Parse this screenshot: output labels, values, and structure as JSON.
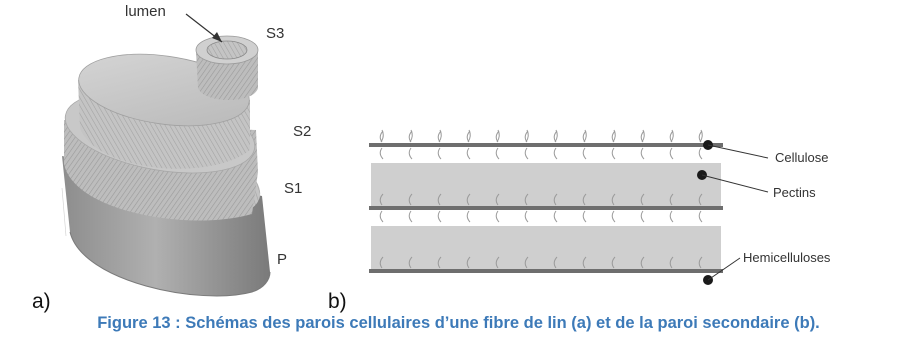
{
  "panel_a": {
    "letter": "a)",
    "labels": {
      "lumen": "lumen",
      "s3": "S3",
      "s2": "S2",
      "s1": "S1",
      "p": "P"
    }
  },
  "panel_b": {
    "letter": "b)",
    "labels": {
      "cellulose": "Cellulose",
      "pectins": "Pectins",
      "hemicelluloses": "Hemicelluloses"
    }
  },
  "caption": "Figure 13 : Schémas des parois cellulaires d’une fibre de lin (a) et de la paroi secondaire (b).",
  "colors": {
    "caption": "#3d7ab8",
    "layer_fill": "#cfcfcf",
    "fiber_line": "#6e6e6e"
  }
}
